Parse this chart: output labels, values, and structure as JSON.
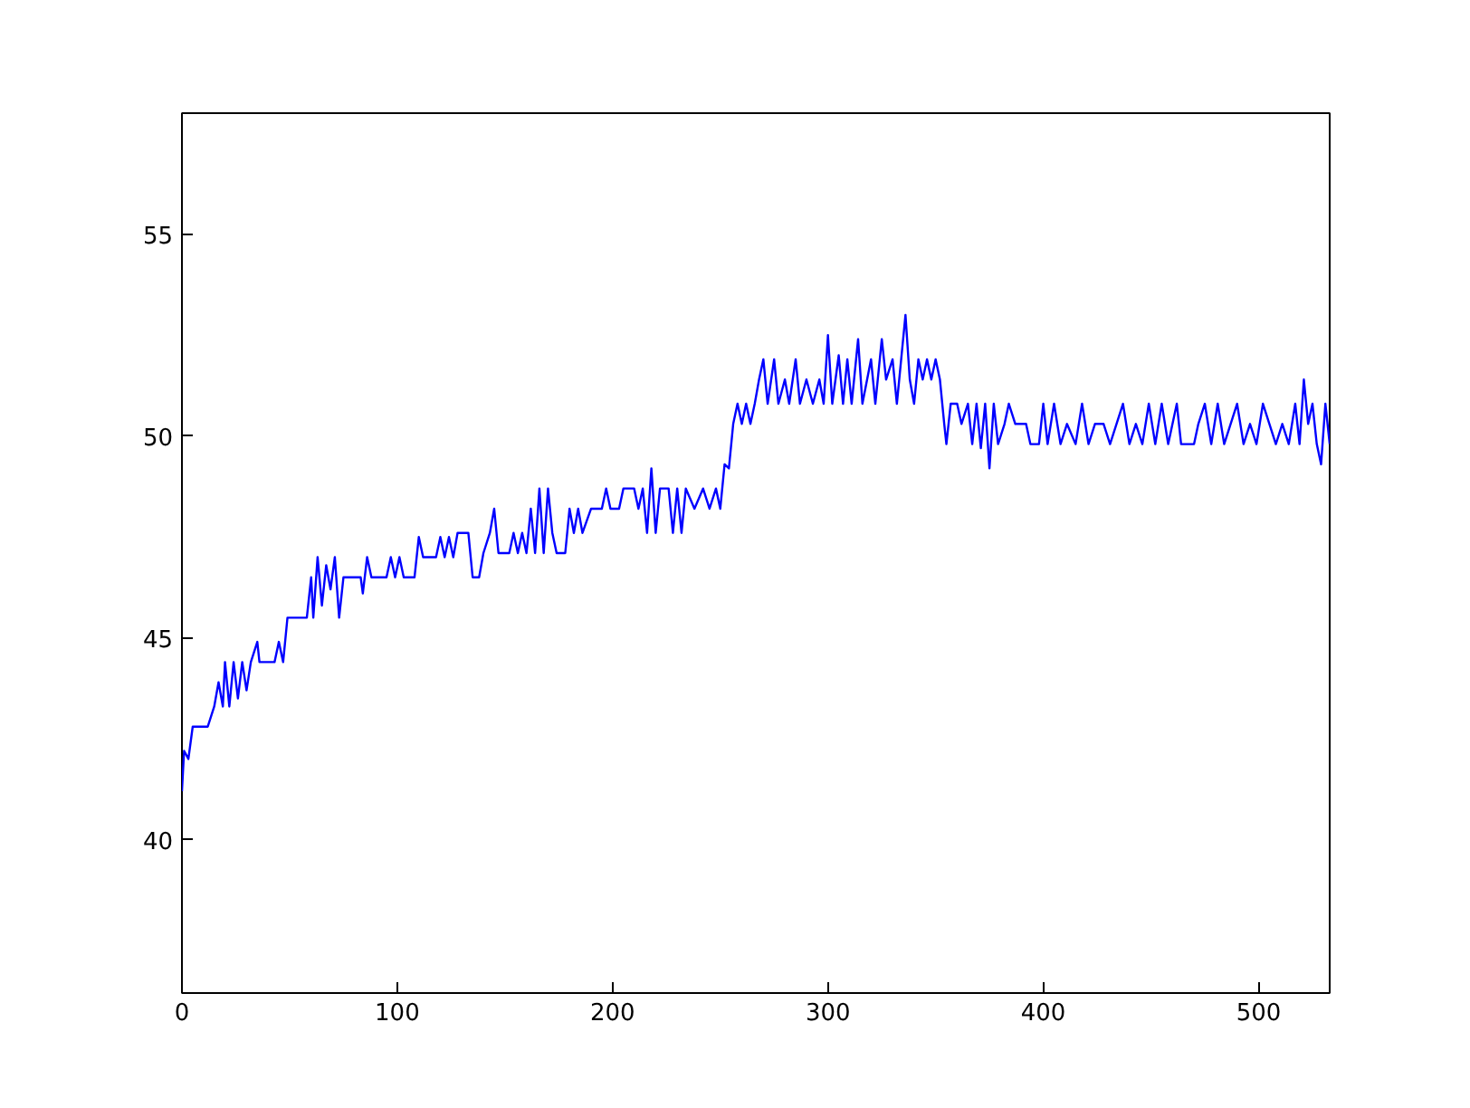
{
  "chart_data": {
    "type": "line",
    "xlim": [
      0,
      533
    ],
    "ylim": [
      36.2,
      58
    ],
    "xticks": [
      0,
      100,
      200,
      300,
      400,
      500
    ],
    "yticks": [
      40,
      45,
      50,
      55
    ],
    "grid": false,
    "series": [
      {
        "color": "#0000ff",
        "x": [
          0,
          1,
          3,
          5,
          12,
          15,
          17,
          19,
          20,
          22,
          24,
          26,
          28,
          30,
          32,
          35,
          36,
          43,
          45,
          47,
          49,
          58,
          60,
          61,
          63,
          65,
          67,
          69,
          71,
          73,
          75,
          83,
          84,
          86,
          88,
          95,
          97,
          99,
          101,
          103,
          108,
          110,
          112,
          118,
          120,
          122,
          124,
          126,
          128,
          133,
          135,
          138,
          140,
          143,
          145,
          147,
          152,
          154,
          156,
          158,
          160,
          162,
          164,
          166,
          168,
          170,
          172,
          174,
          178,
          180,
          182,
          184,
          186,
          190,
          195,
          197,
          199,
          203,
          205,
          210,
          212,
          214,
          216,
          218,
          220,
          222,
          226,
          228,
          230,
          232,
          234,
          238,
          242,
          245,
          248,
          250,
          252,
          254,
          256,
          258,
          260,
          262,
          264,
          266,
          268,
          270,
          272,
          275,
          277,
          280,
          282,
          285,
          287,
          290,
          293,
          296,
          298,
          300,
          302,
          305,
          307,
          309,
          311,
          314,
          316,
          320,
          322,
          325,
          327,
          330,
          332,
          336,
          338,
          340,
          342,
          344,
          346,
          348,
          350,
          352,
          354,
          355,
          357,
          360,
          362,
          365,
          367,
          369,
          371,
          373,
          375,
          377,
          379,
          382,
          384,
          387,
          392,
          394,
          398,
          400,
          402,
          405,
          408,
          411,
          415,
          418,
          421,
          424,
          428,
          431,
          434,
          437,
          440,
          443,
          446,
          449,
          452,
          455,
          458,
          462,
          464,
          470,
          472,
          475,
          478,
          481,
          484,
          487,
          490,
          493,
          496,
          499,
          502,
          505,
          508,
          511,
          514,
          517,
          519,
          521,
          523,
          525,
          527,
          529,
          531,
          533
        ],
        "values": [
          41.2,
          42.2,
          42.0,
          42.8,
          42.8,
          43.3,
          43.9,
          43.3,
          44.4,
          43.3,
          44.4,
          43.5,
          44.4,
          43.7,
          44.4,
          44.9,
          44.4,
          44.4,
          44.9,
          44.4,
          45.5,
          45.5,
          46.5,
          45.5,
          47.0,
          45.8,
          46.8,
          46.2,
          47.0,
          45.5,
          46.5,
          46.5,
          46.1,
          47.0,
          46.5,
          46.5,
          47.0,
          46.5,
          47.0,
          46.5,
          46.5,
          47.5,
          47.0,
          47.0,
          47.5,
          47.0,
          47.5,
          47.0,
          47.6,
          47.6,
          46.5,
          46.5,
          47.1,
          47.6,
          48.2,
          47.1,
          47.1,
          47.6,
          47.1,
          47.6,
          47.1,
          48.2,
          47.1,
          48.7,
          47.1,
          48.7,
          47.6,
          47.1,
          47.1,
          48.2,
          47.6,
          48.2,
          47.6,
          48.2,
          48.2,
          48.7,
          48.2,
          48.2,
          48.7,
          48.7,
          48.2,
          48.7,
          47.6,
          49.2,
          47.6,
          48.7,
          48.7,
          47.6,
          48.7,
          47.6,
          48.7,
          48.2,
          48.7,
          48.2,
          48.7,
          48.2,
          49.3,
          49.2,
          50.3,
          50.8,
          50.3,
          50.8,
          50.3,
          50.8,
          51.4,
          51.9,
          50.8,
          51.9,
          50.8,
          51.4,
          50.8,
          51.9,
          50.8,
          51.4,
          50.8,
          51.4,
          50.8,
          52.5,
          50.8,
          52.0,
          50.8,
          51.9,
          50.8,
          52.4,
          50.8,
          51.9,
          50.8,
          52.4,
          51.4,
          51.9,
          50.8,
          53.0,
          51.4,
          50.8,
          51.9,
          51.4,
          51.9,
          51.4,
          51.9,
          51.4,
          50.3,
          49.8,
          50.8,
          50.8,
          50.3,
          50.8,
          49.8,
          50.8,
          49.7,
          50.8,
          49.2,
          50.8,
          49.8,
          50.3,
          50.8,
          50.3,
          50.3,
          49.8,
          49.8,
          50.8,
          49.8,
          50.8,
          49.8,
          50.3,
          49.8,
          50.8,
          49.8,
          50.3,
          50.3,
          49.8,
          50.3,
          50.8,
          49.8,
          50.3,
          49.8,
          50.8,
          49.8,
          50.8,
          49.8,
          50.8,
          49.8,
          49.8,
          50.3,
          50.8,
          49.8,
          50.8,
          49.8,
          50.3,
          50.8,
          49.8,
          50.3,
          49.8,
          50.8,
          50.3,
          49.8,
          50.3,
          49.8,
          50.8,
          49.8,
          51.4,
          50.3,
          50.8,
          49.8,
          49.3,
          50.8,
          49.8
        ]
      }
    ]
  }
}
